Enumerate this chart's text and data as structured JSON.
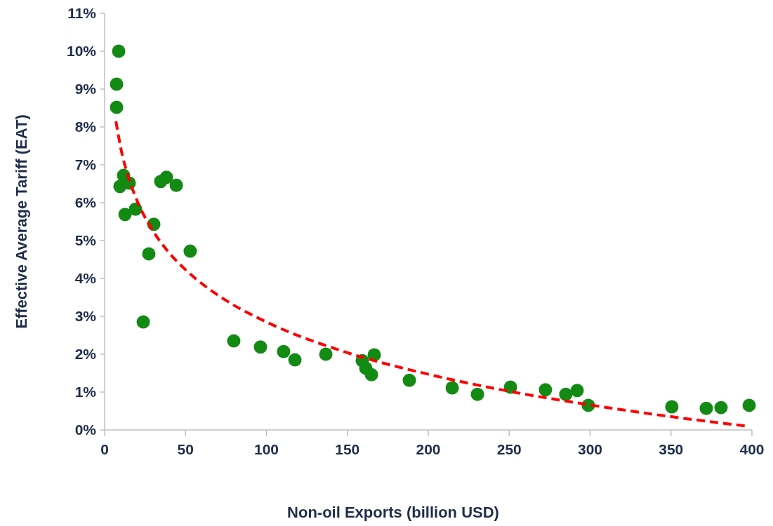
{
  "chart_data": {
    "type": "scatter",
    "xlabel": "Non-oil Exports (billion USD)",
    "ylabel": "Effective Average Tariff (EAT)",
    "xlim": [
      0,
      400
    ],
    "xticks": [
      0,
      50,
      100,
      150,
      200,
      250,
      300,
      350,
      400
    ],
    "ylim": [
      0,
      11
    ],
    "yticks": [
      {
        "value": 0,
        "label": "0%"
      },
      {
        "value": 1,
        "label": "1%"
      },
      {
        "value": 2,
        "label": "2%"
      },
      {
        "value": 3,
        "label": "3%"
      },
      {
        "value": 4,
        "label": "4%"
      },
      {
        "value": 5,
        "label": "5%"
      },
      {
        "value": 6,
        "label": "6%"
      },
      {
        "value": 7,
        "label": "7%"
      },
      {
        "value": 8,
        "label": "8%"
      },
      {
        "value": 9,
        "label": "9%"
      },
      {
        "value": 10,
        "label": "10%"
      },
      {
        "value": 11,
        "label": "11%"
      }
    ],
    "grid": false,
    "legend": false,
    "series": [
      {
        "color": "#138a13",
        "marker": "circle",
        "x": [
          8.7,
          7.4,
          7.4,
          11.7,
          9.5,
          15.2,
          12.6,
          19.1,
          30.4,
          27.3,
          23.9,
          34.7,
          38.2,
          44.3,
          52.9,
          79.8,
          96.3,
          110.6,
          117.6,
          136.7,
          159.2,
          161.4,
          166.6,
          164.9,
          188.3,
          214.8,
          230.4,
          250.8,
          272.4,
          285,
          292,
          298.9,
          350.5,
          371.8,
          380.9,
          398.3
        ],
        "values": [
          10.0,
          9.13,
          8.52,
          6.72,
          6.43,
          6.52,
          5.69,
          5.83,
          5.43,
          4.65,
          2.85,
          6.56,
          6.67,
          6.46,
          4.72,
          2.35,
          2.19,
          2.07,
          1.85,
          2.0,
          1.83,
          1.63,
          1.98,
          1.46,
          1.31,
          1.11,
          0.94,
          1.13,
          1.06,
          0.94,
          1.04,
          0.65,
          0.61,
          0.57,
          0.59,
          0.65
        ]
      },
      {
        "type": "line",
        "color": "#ff0000",
        "line_style": "dashed",
        "marker": "none",
        "x": [
          7,
          10,
          15,
          20,
          30,
          40,
          50,
          75,
          100,
          150,
          200,
          250,
          300,
          350,
          397
        ],
        "values": [
          8.15,
          7.44,
          6.63,
          6.06,
          5.25,
          4.67,
          4.23,
          3.42,
          2.85,
          2.04,
          1.47,
          1.02,
          0.66,
          0.35,
          0.1
        ]
      }
    ]
  }
}
